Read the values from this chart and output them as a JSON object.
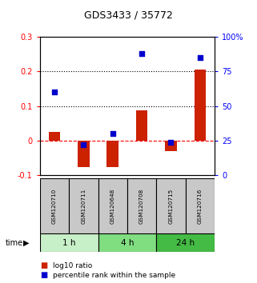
{
  "title": "GDS3433 / 35772",
  "samples": [
    "GSM120710",
    "GSM120711",
    "GSM120648",
    "GSM120708",
    "GSM120715",
    "GSM120716"
  ],
  "log10_ratio": [
    0.025,
    -0.075,
    -0.075,
    0.088,
    -0.03,
    0.205
  ],
  "percentile_rank": [
    60,
    22,
    30,
    88,
    24,
    85
  ],
  "time_groups": [
    {
      "label": "1 h",
      "start": 0,
      "end": 2,
      "color": "#c8f0c8"
    },
    {
      "label": "4 h",
      "start": 2,
      "end": 4,
      "color": "#80dd80"
    },
    {
      "label": "24 h",
      "start": 4,
      "end": 6,
      "color": "#44bb44"
    }
  ],
  "ylim_left": [
    -0.1,
    0.3
  ],
  "ylim_right": [
    0,
    100
  ],
  "yticks_left": [
    -0.1,
    0.0,
    0.1,
    0.2,
    0.3
  ],
  "yticks_right": [
    0,
    25,
    50,
    75,
    100
  ],
  "ytick_labels_left": [
    "-0.1",
    "0",
    "0.1",
    "0.2",
    "0.3"
  ],
  "ytick_labels_right": [
    "0",
    "25",
    "50",
    "75",
    "100%"
  ],
  "hlines": [
    0.1,
    0.2
  ],
  "bar_color": "#cc2200",
  "dot_color": "#0000cc",
  "bar_width": 0.4,
  "dot_size": 22,
  "label_log10": "log10 ratio",
  "label_pct": "percentile rank within the sample",
  "time_label": "time"
}
